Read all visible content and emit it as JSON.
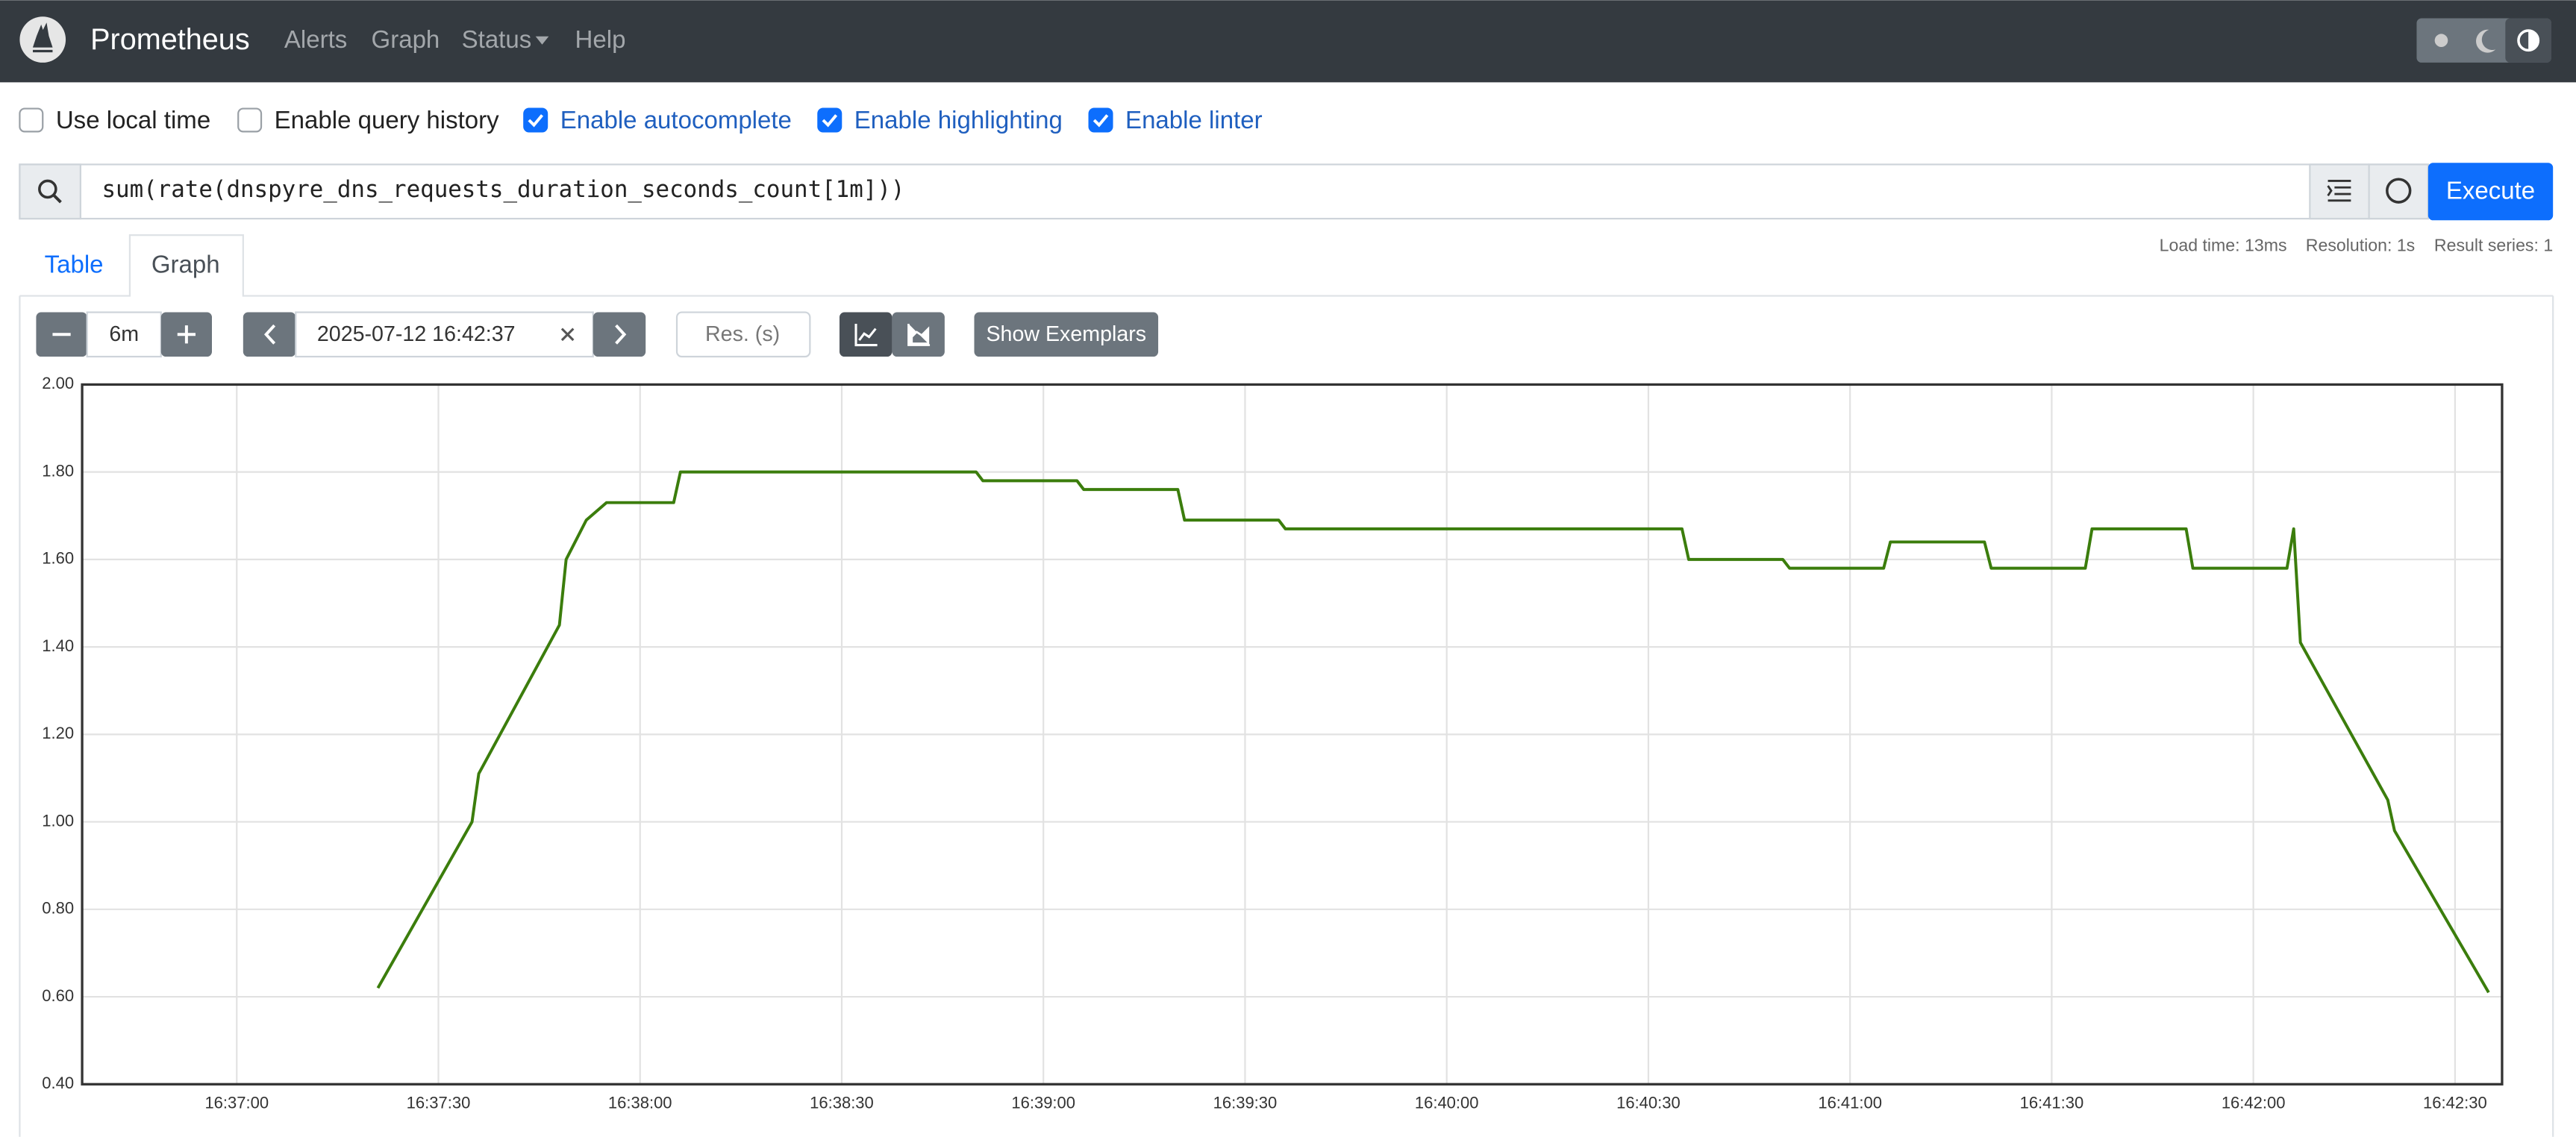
{
  "navbar": {
    "brand": "Prometheus",
    "links": [
      "Alerts",
      "Graph",
      "Status",
      "Help"
    ]
  },
  "options": [
    {
      "label": "Use local time",
      "checked": false
    },
    {
      "label": "Enable query history",
      "checked": false
    },
    {
      "label": "Enable autocomplete",
      "checked": true
    },
    {
      "label": "Enable highlighting",
      "checked": true
    },
    {
      "label": "Enable linter",
      "checked": true
    }
  ],
  "query": "sum(rate(dnspyre_dns_requests_duration_seconds_count[1m]))",
  "execute": "Execute",
  "tabs": [
    "Table",
    "Graph"
  ],
  "stats": [
    "Load time: 13ms",
    "Resolution: 1s",
    "Result series: 1"
  ],
  "controls": {
    "range": "6m",
    "end_time": "2025-07-12 16:42:37",
    "resolution_placeholder": "Res. (s)",
    "exemplars": "Show Exemplars"
  },
  "chart_data": {
    "type": "line",
    "x": [
      "16:37:21",
      "16:37:35",
      "16:37:36",
      "16:37:48",
      "16:37:49",
      "16:37:52",
      "16:37:55",
      "16:38:05",
      "16:38:06",
      "16:38:50",
      "16:38:51",
      "16:39:05",
      "16:39:06",
      "16:39:20",
      "16:39:21",
      "16:39:35",
      "16:39:36",
      "16:40:35",
      "16:40:36",
      "16:40:50",
      "16:40:51",
      "16:41:05",
      "16:41:06",
      "16:41:20",
      "16:41:21",
      "16:41:35",
      "16:41:36",
      "16:41:50",
      "16:41:51",
      "16:42:05",
      "16:42:06",
      "16:42:07",
      "16:42:20",
      "16:42:21",
      "16:42:35"
    ],
    "series": [
      {
        "color": "#3b7d0c",
        "values": [
          0.62,
          1.0,
          1.11,
          1.45,
          1.6,
          1.69,
          1.73,
          1.73,
          1.8,
          1.8,
          1.78,
          1.78,
          1.76,
          1.76,
          1.69,
          1.69,
          1.67,
          1.67,
          1.6,
          1.6,
          1.58,
          1.58,
          1.64,
          1.64,
          1.58,
          1.58,
          1.67,
          1.67,
          1.58,
          1.58,
          1.67,
          1.41,
          1.05,
          0.98,
          0.61
        ]
      }
    ],
    "xlim": [
      "16:36:37",
      "16:42:37"
    ],
    "xticks": [
      "16:37:00",
      "16:37:30",
      "16:38:00",
      "16:38:30",
      "16:39:00",
      "16:39:30",
      "16:40:00",
      "16:40:30",
      "16:41:00",
      "16:41:30",
      "16:42:00",
      "16:42:30"
    ],
    "ylim": [
      0.4,
      2.0
    ],
    "yticks": [
      {
        "value": 0.4,
        "label": "0.40"
      },
      {
        "value": 0.6,
        "label": "0.60"
      },
      {
        "value": 0.8,
        "label": "0.80"
      },
      {
        "value": 1.0,
        "label": "1.00"
      },
      {
        "value": 1.2,
        "label": "1.20"
      },
      {
        "value": 1.4,
        "label": "1.40"
      },
      {
        "value": 1.6,
        "label": "1.60"
      },
      {
        "value": 1.8,
        "label": "1.80"
      },
      {
        "value": 2.0,
        "label": "2.00"
      }
    ],
    "grid": true
  }
}
